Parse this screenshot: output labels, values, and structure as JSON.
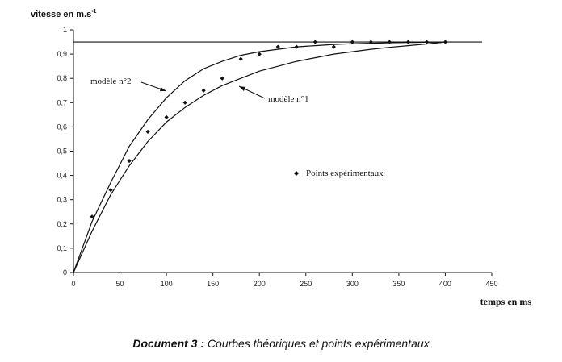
{
  "chart_data": {
    "type": "line",
    "ylabel": "vitesse en m.s",
    "ylabel_sup": "-1",
    "xlabel": "temps en ms",
    "xlim": [
      0,
      450
    ],
    "ylim": [
      0,
      1
    ],
    "x_ticks": [
      "0",
      "50",
      "100",
      "150",
      "200",
      "250",
      "300",
      "350",
      "400",
      "450"
    ],
    "y_ticks": [
      "0",
      "0,1",
      "0,2",
      "0,3",
      "0,4",
      "0,5",
      "0,6",
      "0,7",
      "0,8",
      "0,9",
      "1"
    ],
    "asymptote": 0.95,
    "grid": false,
    "models": [
      {
        "name": "modèle n°2",
        "x": [
          0,
          20,
          40,
          60,
          80,
          100,
          120,
          140,
          160,
          180,
          200,
          220,
          240,
          260,
          280,
          300,
          320,
          340,
          360,
          380,
          400
        ],
        "y": [
          0,
          0.21,
          0.37,
          0.52,
          0.63,
          0.72,
          0.79,
          0.84,
          0.87,
          0.895,
          0.91,
          0.92,
          0.93,
          0.935,
          0.94,
          0.943,
          0.945,
          0.947,
          0.948,
          0.949,
          0.95
        ]
      },
      {
        "name": "modèle n°1",
        "x": [
          0,
          20,
          40,
          60,
          80,
          100,
          120,
          140,
          160,
          180,
          200,
          220,
          240,
          260,
          280,
          300,
          320,
          340,
          360,
          380,
          400
        ],
        "y": [
          0,
          0.17,
          0.32,
          0.44,
          0.54,
          0.62,
          0.68,
          0.73,
          0.77,
          0.8,
          0.83,
          0.85,
          0.87,
          0.885,
          0.9,
          0.91,
          0.92,
          0.928,
          0.935,
          0.942,
          0.95
        ]
      }
    ],
    "points": {
      "name": "Points expérimentaux",
      "x": [
        20,
        40,
        60,
        80,
        100,
        120,
        140,
        160,
        180,
        200,
        220,
        240,
        260,
        280,
        300,
        320,
        340,
        360,
        380,
        400
      ],
      "y": [
        0.23,
        0.34,
        0.46,
        0.58,
        0.64,
        0.7,
        0.75,
        0.8,
        0.88,
        0.9,
        0.93,
        0.93,
        0.95,
        0.93,
        0.95,
        0.95,
        0.95,
        0.95,
        0.95,
        0.95
      ]
    }
  },
  "caption": {
    "doc_label": "Document 3 :",
    "description": " Courbes théoriques et points expérimentaux"
  }
}
